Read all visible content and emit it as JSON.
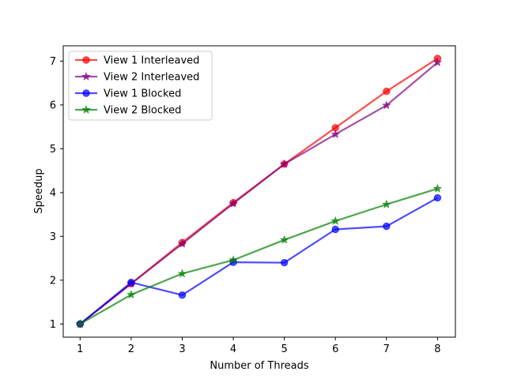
{
  "chart_data": {
    "type": "line",
    "title": "",
    "xlabel": "Number of Threads",
    "ylabel": "Speedup",
    "x": [
      1,
      2,
      3,
      4,
      5,
      6,
      7,
      8
    ],
    "xlim": [
      0.67,
      8.35
    ],
    "ylim": [
      0.7,
      7.35
    ],
    "xticks": [
      "1",
      "2",
      "3",
      "4",
      "5",
      "6",
      "7",
      "8"
    ],
    "yticks": [
      "1",
      "2",
      "3",
      "4",
      "5",
      "6",
      "7"
    ],
    "grid": false,
    "legend_position": "top-left",
    "series": [
      {
        "name": "View 1 Interleaved",
        "color": "#ff0000",
        "marker": "circle",
        "values": [
          1.0,
          1.92,
          2.86,
          3.77,
          4.65,
          5.48,
          6.31,
          7.06
        ]
      },
      {
        "name": "View 2 Interleaved",
        "color": "#800080",
        "marker": "star",
        "values": [
          1.0,
          1.92,
          2.83,
          3.75,
          4.65,
          5.33,
          5.99,
          6.97
        ]
      },
      {
        "name": "View 1 Blocked",
        "color": "#0000ff",
        "marker": "circle",
        "values": [
          1.0,
          1.95,
          1.66,
          2.41,
          2.4,
          3.16,
          3.23,
          3.88
        ]
      },
      {
        "name": "View 2 Blocked",
        "color": "#008000",
        "marker": "star",
        "values": [
          1.0,
          1.67,
          2.15,
          2.46,
          2.92,
          3.35,
          3.73,
          4.09
        ]
      }
    ]
  }
}
